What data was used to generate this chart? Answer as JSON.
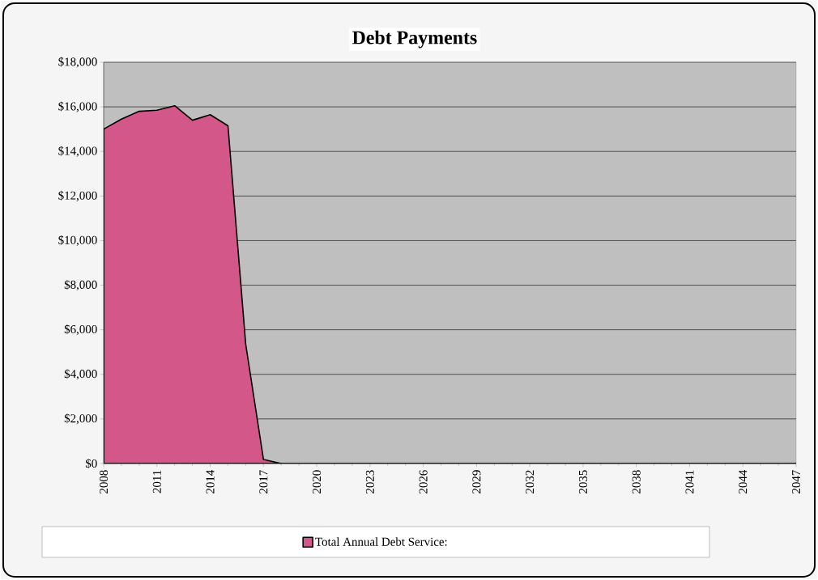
{
  "chart_data": {
    "type": "area",
    "title": "Debt Payments",
    "x": [
      2008,
      2009,
      2010,
      2011,
      2012,
      2013,
      2014,
      2015,
      2016,
      2017,
      2018,
      2019,
      2020,
      2021,
      2022,
      2023,
      2024,
      2025,
      2026,
      2027,
      2028,
      2029,
      2030,
      2031,
      2032,
      2033,
      2034,
      2035,
      2036,
      2037,
      2038,
      2039,
      2040,
      2041,
      2042,
      2043,
      2044,
      2045,
      2046,
      2047
    ],
    "series": [
      {
        "name": "Total Annual Debt Service:",
        "color": "#d4578a",
        "values": [
          15000,
          15450,
          15800,
          15850,
          16050,
          15400,
          15650,
          15150,
          5350,
          180,
          0,
          0,
          0,
          0,
          0,
          0,
          0,
          0,
          0,
          0,
          0,
          0,
          0,
          0,
          0,
          0,
          0,
          0,
          0,
          0,
          0,
          0,
          0,
          0,
          0,
          0,
          0,
          0,
          0,
          0
        ]
      }
    ],
    "xlim": [
      2008,
      2047
    ],
    "xticks": [
      2008,
      2011,
      2014,
      2017,
      2020,
      2023,
      2026,
      2029,
      2032,
      2035,
      2038,
      2041,
      2044,
      2047
    ],
    "ylim": [
      0,
      18000
    ],
    "yticks": [
      {
        "value": 0,
        "label": "$0"
      },
      {
        "value": 2000,
        "label": "$2,000"
      },
      {
        "value": 4000,
        "label": "$4,000"
      },
      {
        "value": 6000,
        "label": "$6,000"
      },
      {
        "value": 8000,
        "label": "$8,000"
      },
      {
        "value": 10000,
        "label": "$10,000"
      },
      {
        "value": 12000,
        "label": "$12,000"
      },
      {
        "value": 14000,
        "label": "$14,000"
      },
      {
        "value": 16000,
        "label": "$16,000"
      },
      {
        "value": 18000,
        "label": "$18,000"
      }
    ],
    "grid": "y",
    "legend": "bottom"
  }
}
